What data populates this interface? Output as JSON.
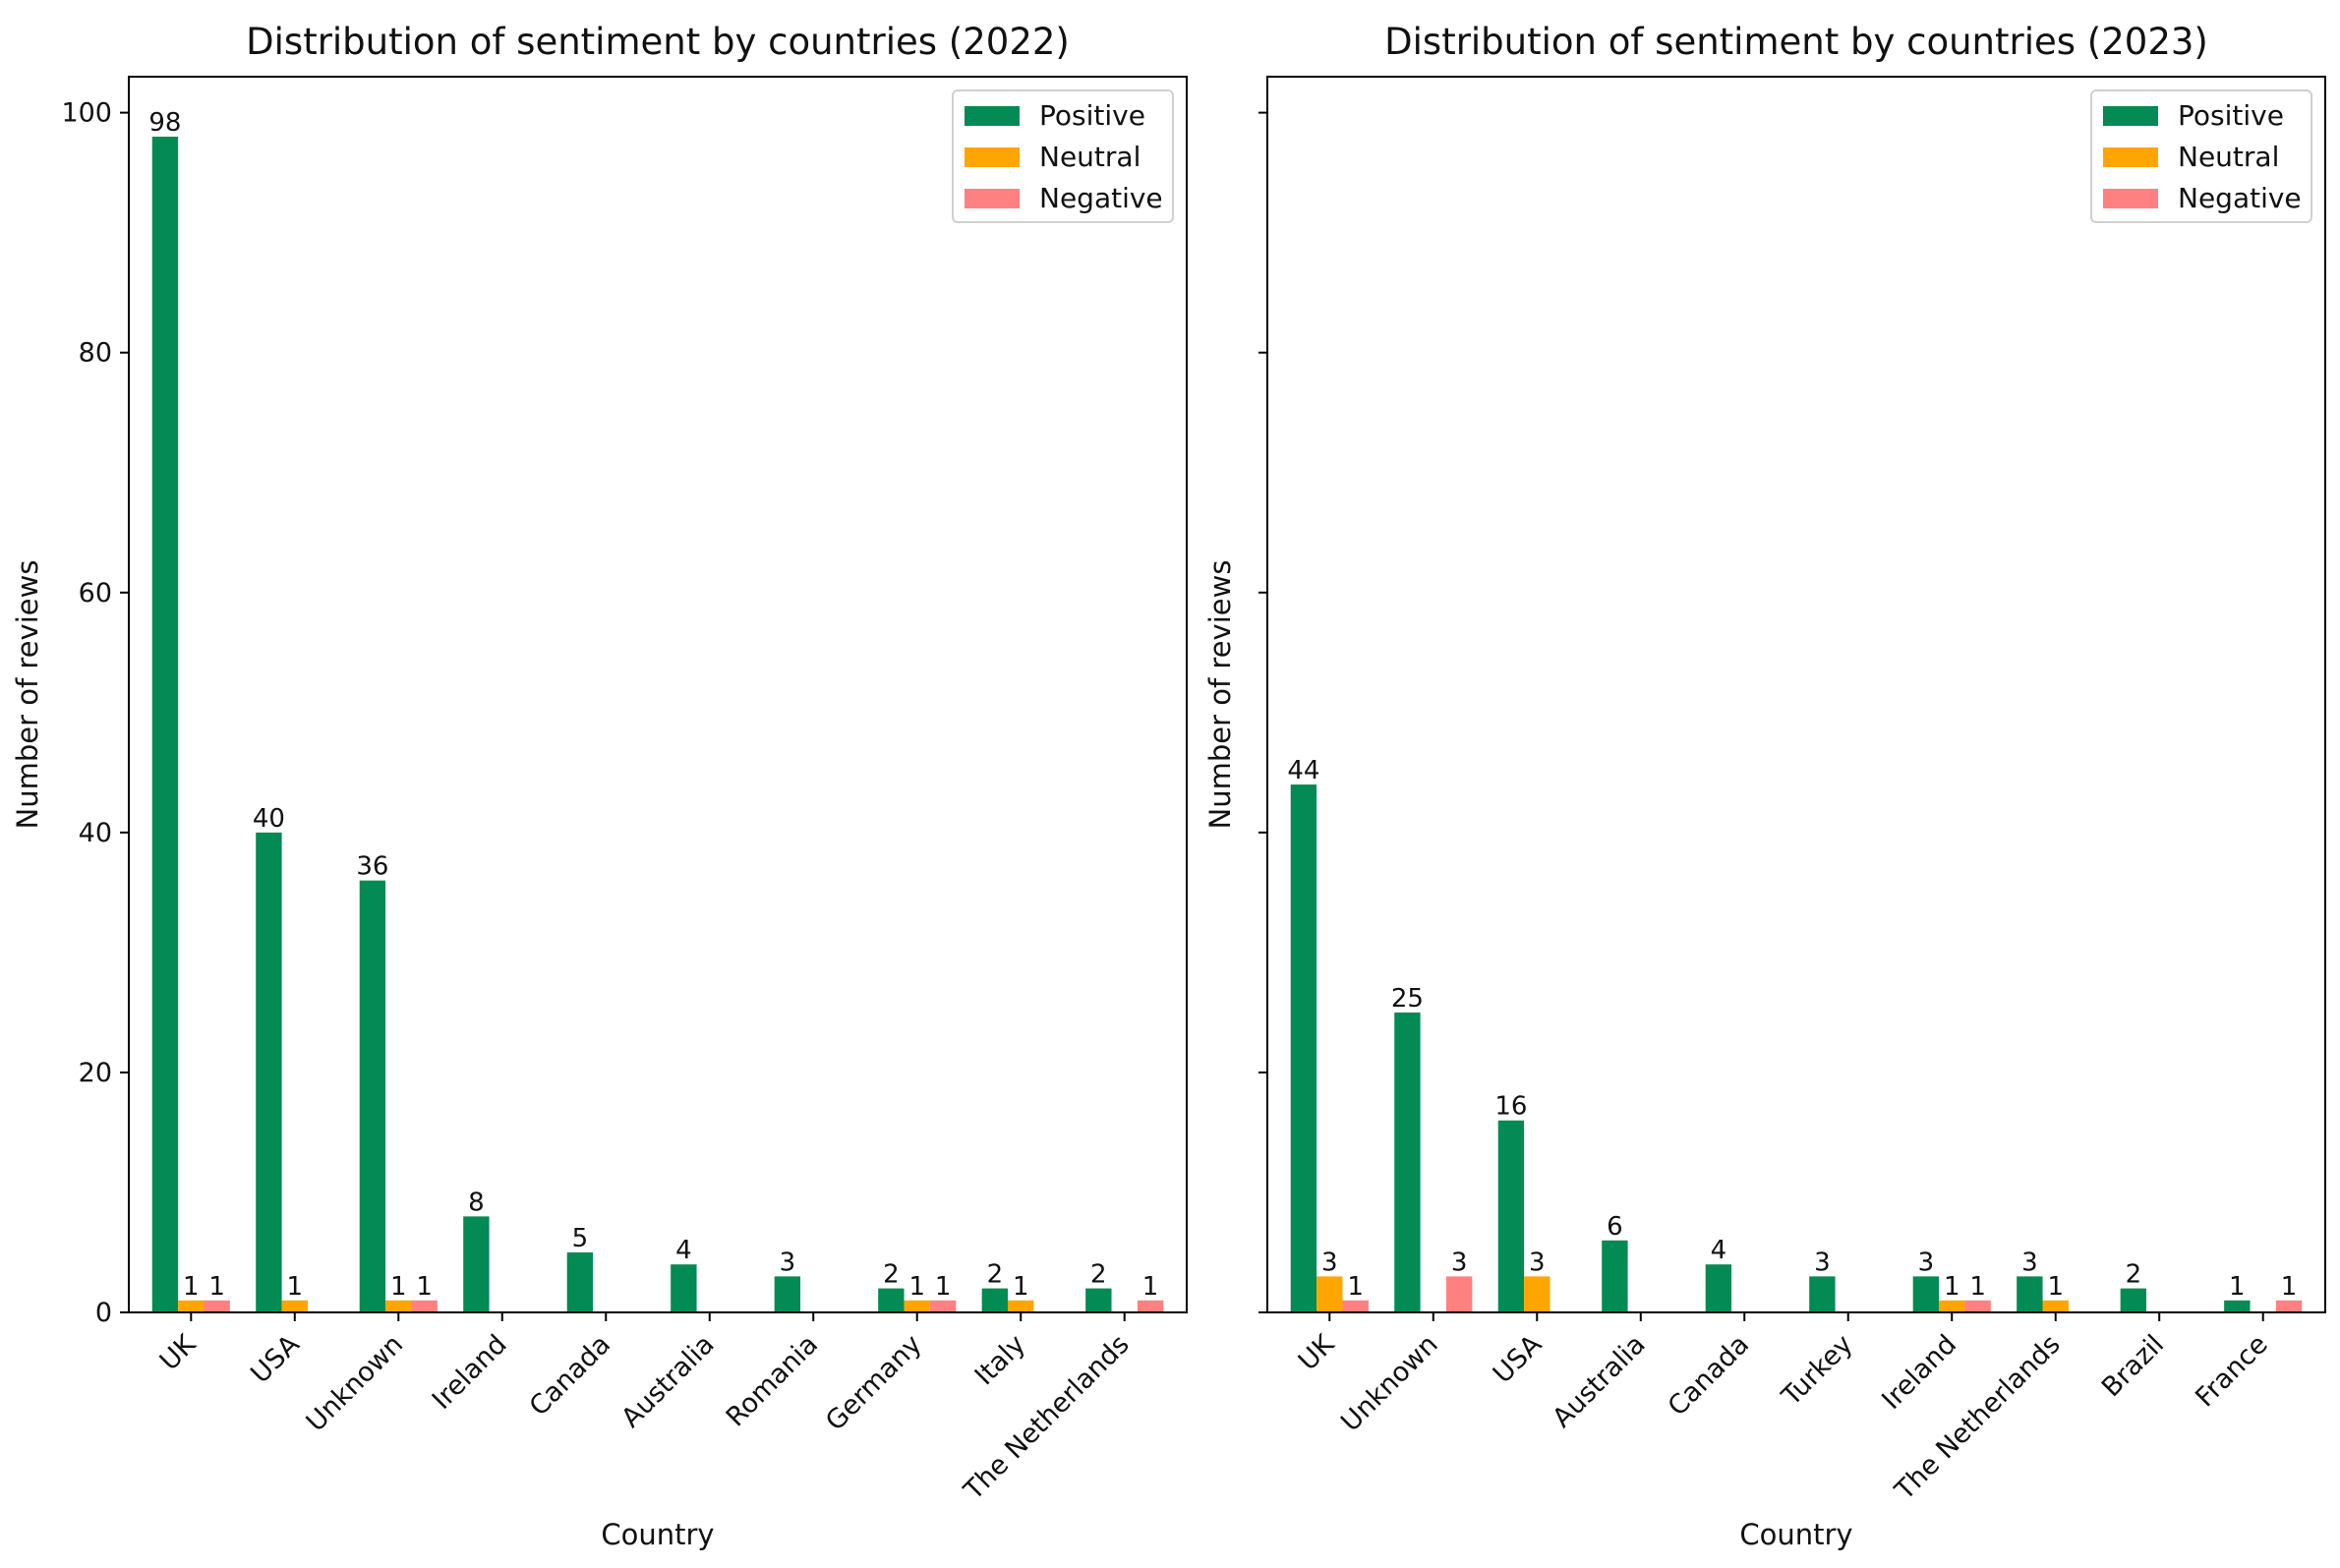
{
  "chart_data": [
    {
      "type": "bar",
      "title": "Distribution of sentiment by countries (2022)",
      "xlabel": "Country",
      "ylabel": "Number of reviews",
      "ylim": [
        0,
        103
      ],
      "yticks": [
        0,
        20,
        40,
        60,
        80,
        100
      ],
      "categories": [
        "UK",
        "USA",
        "Unknown",
        "Ireland",
        "Canada",
        "Australia",
        "Romania",
        "Germany",
        "Italy",
        "The Netherlands"
      ],
      "series": [
        {
          "name": "Positive",
          "color": "#048a55",
          "values": [
            98,
            40,
            36,
            8,
            5,
            4,
            3,
            2,
            2,
            2
          ]
        },
        {
          "name": "Neutral",
          "color": "#ffa500",
          "values": [
            1,
            1,
            1,
            0,
            0,
            0,
            0,
            1,
            1,
            0
          ]
        },
        {
          "name": "Negative",
          "color": "#ff8080",
          "values": [
            1,
            0,
            1,
            0,
            0,
            0,
            0,
            1,
            0,
            1
          ]
        }
      ],
      "legend": "top-right",
      "grid": false
    },
    {
      "type": "bar",
      "title": "Distribution of sentiment by countries (2023)",
      "xlabel": "Country",
      "ylabel": "Number of reviews",
      "ylim": [
        0,
        103
      ],
      "yticks": [
        0,
        20,
        40,
        60,
        80,
        100
      ],
      "show_ytick_labels": false,
      "categories": [
        "UK",
        "Unknown",
        "USA",
        "Australia",
        "Canada",
        "Turkey",
        "Ireland",
        "The Netherlands",
        "Brazil",
        "France"
      ],
      "series": [
        {
          "name": "Positive",
          "color": "#048a55",
          "values": [
            44,
            25,
            16,
            6,
            4,
            3,
            3,
            3,
            2,
            1
          ]
        },
        {
          "name": "Neutral",
          "color": "#ffa500",
          "values": [
            3,
            0,
            3,
            0,
            0,
            0,
            1,
            1,
            0,
            0
          ]
        },
        {
          "name": "Negative",
          "color": "#ff8080",
          "values": [
            1,
            3,
            0,
            0,
            0,
            0,
            1,
            0,
            0,
            1
          ]
        }
      ],
      "legend": "top-right",
      "grid": false
    }
  ]
}
